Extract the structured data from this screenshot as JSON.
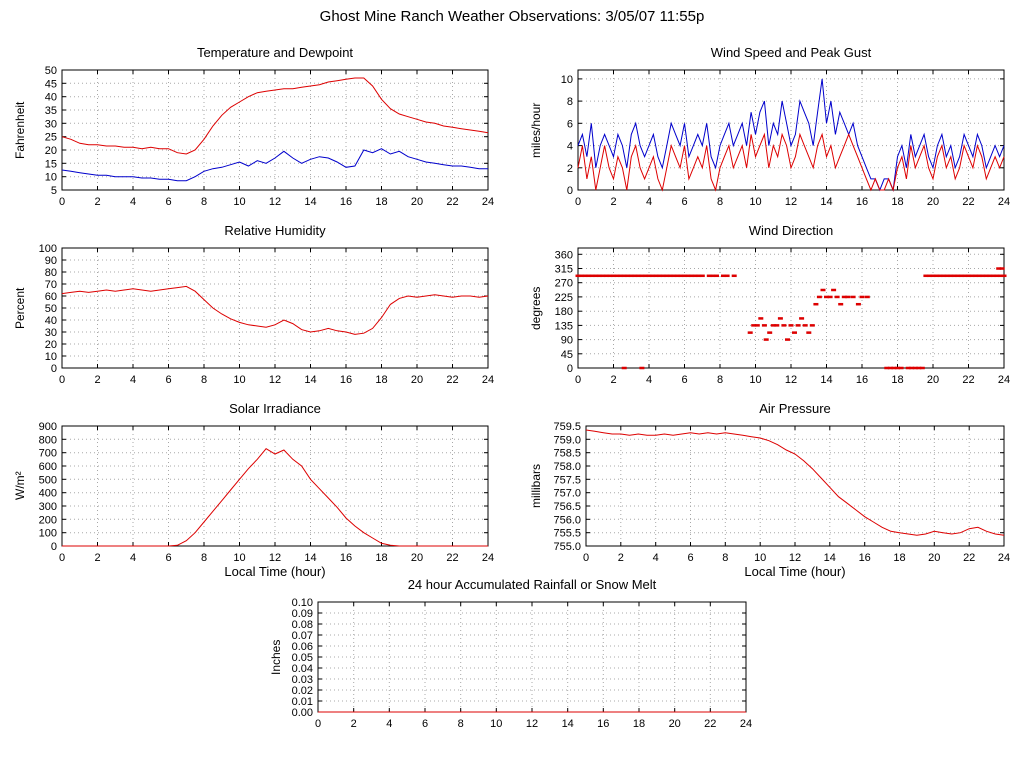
{
  "page_title": "Ghost Mine Ranch Weather Observations: 3/05/07 11:55p",
  "colors": {
    "red_series": "#dd0000",
    "blue_series": "#0000cc"
  },
  "chart_data": [
    {
      "id": "temperature_dewpoint",
      "type": "line",
      "title": "Temperature and Dewpoint",
      "ylabel": "Fahrenheit",
      "xlim": [
        0,
        24
      ],
      "xtick_step": 2,
      "ylim": [
        5,
        50
      ],
      "yticks": [
        5,
        10,
        15,
        20,
        25,
        30,
        35,
        40,
        45,
        50
      ],
      "ytick_decimals": 0,
      "x_start": 0,
      "x_step": 0.5,
      "series": [
        {
          "name": "Temperature",
          "color": "#dd0000",
          "values": [
            25,
            24,
            22.5,
            22,
            22,
            21.5,
            21.5,
            21,
            21,
            20.5,
            21,
            20.5,
            20.5,
            19,
            18.5,
            20,
            24,
            29,
            33,
            36,
            38,
            40,
            41.5,
            42,
            42.5,
            43,
            43,
            43.5,
            44,
            44.5,
            45.5,
            46,
            46.5,
            47,
            47,
            44,
            39,
            35.5,
            33.5,
            32.5,
            31.5,
            30.5,
            30,
            29,
            28.5,
            28,
            27.5,
            27,
            26.5
          ]
        },
        {
          "name": "Dewpoint",
          "color": "#0000cc",
          "values": [
            12.5,
            12,
            11.5,
            11,
            10.5,
            10.5,
            10,
            10,
            10,
            9.5,
            9.5,
            9,
            9,
            8.5,
            8.5,
            10,
            12,
            13,
            13.5,
            14.5,
            15.5,
            14,
            16,
            15,
            17,
            19.5,
            17,
            15,
            16.5,
            17.5,
            17,
            15.5,
            13.5,
            14,
            20,
            19,
            20.5,
            18.5,
            19.5,
            17.5,
            16.5,
            15.5,
            15,
            14.5,
            14,
            14,
            13.5,
            13,
            13
          ]
        }
      ]
    },
    {
      "id": "wind_speed_gust",
      "type": "line",
      "title": "Wind Speed and Peak Gust",
      "ylabel": "miles/hour",
      "xlim": [
        0,
        24
      ],
      "xtick_step": 2,
      "ylim": [
        0,
        10.8
      ],
      "yticks": [
        0,
        2,
        4,
        6,
        8,
        10
      ],
      "ytick_decimals": 0,
      "x_start": 0,
      "x_step": 0.25,
      "series": [
        {
          "name": "Peak Gust",
          "color": "#0000cc",
          "values": [
            4,
            5,
            3,
            6,
            2,
            4,
            5,
            4,
            3,
            5,
            4,
            2,
            5,
            6,
            4,
            3,
            4,
            5,
            3,
            2,
            4,
            6,
            5,
            4,
            6,
            3,
            4,
            5,
            4,
            6,
            3,
            2,
            4,
            5,
            6,
            4,
            5,
            6,
            4,
            7,
            5,
            7,
            8,
            4,
            6,
            5,
            8,
            6,
            4,
            5,
            8,
            7,
            6,
            4,
            7,
            10,
            6,
            8,
            5,
            7,
            6,
            5,
            6,
            4,
            3,
            2,
            1,
            1,
            0,
            1,
            1,
            0,
            3,
            4,
            2,
            5,
            3,
            4,
            5,
            3,
            2,
            4,
            5,
            3,
            4,
            2,
            3,
            5,
            4,
            3,
            5,
            4,
            2,
            3,
            4,
            3,
            4
          ]
        },
        {
          "name": "Wind Speed",
          "color": "#dd0000",
          "values": [
            2,
            4,
            1,
            3,
            0,
            2,
            4,
            2,
            1,
            3,
            2,
            0,
            3,
            4,
            2,
            1,
            2,
            3,
            1,
            0,
            2,
            4,
            3,
            2,
            4,
            1,
            2,
            3,
            2,
            4,
            1,
            0,
            2,
            3,
            4,
            2,
            3,
            4,
            2,
            5,
            3,
            4,
            5,
            2,
            4,
            3,
            5,
            4,
            2,
            3,
            5,
            4,
            3,
            2,
            4,
            5,
            3,
            4,
            2,
            3,
            4,
            5,
            4,
            3,
            2,
            1,
            0,
            1,
            0,
            0,
            1,
            0,
            2,
            3,
            1,
            4,
            2,
            3,
            4,
            2,
            1,
            3,
            4,
            2,
            3,
            1,
            2,
            4,
            3,
            2,
            4,
            3,
            1,
            2,
            3,
            2,
            3
          ]
        }
      ]
    },
    {
      "id": "relative_humidity",
      "type": "line",
      "title": "Relative Humidity",
      "ylabel": "Percent",
      "xlim": [
        0,
        24
      ],
      "xtick_step": 2,
      "ylim": [
        0,
        100
      ],
      "yticks": [
        0,
        10,
        20,
        30,
        40,
        50,
        60,
        70,
        80,
        90,
        100
      ],
      "ytick_decimals": 0,
      "x_start": 0,
      "x_step": 0.5,
      "series": [
        {
          "name": "Relative Humidity",
          "color": "#dd0000",
          "values": [
            62,
            63,
            64,
            63,
            64,
            65,
            64,
            65,
            66,
            65,
            64,
            65,
            66,
            67,
            68,
            64,
            57,
            50,
            45,
            41,
            38,
            36,
            35,
            34,
            36,
            40,
            37,
            32,
            30,
            31,
            33,
            31,
            30,
            28,
            29,
            33,
            42,
            53,
            58,
            60,
            59,
            60,
            61,
            60,
            59,
            60,
            60,
            59,
            60
          ]
        }
      ]
    },
    {
      "id": "wind_direction",
      "type": "scatter",
      "title": "Wind Direction",
      "ylabel": "degrees",
      "xlim": [
        0,
        24
      ],
      "xtick_step": 2,
      "ylim": [
        0,
        380
      ],
      "yticks": [
        0,
        45,
        90,
        135,
        180,
        225,
        270,
        315,
        360
      ],
      "ytick_decimals": 0,
      "series": [
        {
          "name": "Wind Direction",
          "color": "#dd0000",
          "points": [
            [
              0,
              292
            ],
            [
              0.2,
              292
            ],
            [
              0.4,
              292
            ],
            [
              0.6,
              292
            ],
            [
              0.8,
              292
            ],
            [
              1,
              292
            ],
            [
              1.2,
              292
            ],
            [
              1.4,
              292
            ],
            [
              1.6,
              292
            ],
            [
              1.8,
              292
            ],
            [
              2,
              292
            ],
            [
              2.2,
              292
            ],
            [
              2.4,
              292
            ],
            [
              2.6,
              292
            ],
            [
              2.8,
              292
            ],
            [
              3,
              292
            ],
            [
              3.2,
              292
            ],
            [
              3.4,
              292
            ],
            [
              3.6,
              292
            ],
            [
              3.8,
              292
            ],
            [
              4,
              292
            ],
            [
              4.2,
              292
            ],
            [
              4.4,
              292
            ],
            [
              4.6,
              292
            ],
            [
              4.8,
              292
            ],
            [
              5,
              292
            ],
            [
              5.2,
              292
            ],
            [
              5.4,
              292
            ],
            [
              5.6,
              292
            ],
            [
              5.8,
              292
            ],
            [
              6,
              292
            ],
            [
              6.2,
              292
            ],
            [
              6.4,
              292
            ],
            [
              6.6,
              292
            ],
            [
              6.8,
              292
            ],
            [
              7,
              292
            ],
            [
              7.4,
              292
            ],
            [
              7.6,
              292
            ],
            [
              7.8,
              292
            ],
            [
              8.2,
              292
            ],
            [
              8.4,
              292
            ],
            [
              8.8,
              292
            ],
            [
              2.6,
              0
            ],
            [
              3.6,
              0
            ],
            [
              9.7,
              112
            ],
            [
              9.9,
              135
            ],
            [
              10.1,
              135
            ],
            [
              10.3,
              157
            ],
            [
              10.5,
              135
            ],
            [
              10.6,
              90
            ],
            [
              10.8,
              112
            ],
            [
              11,
              135
            ],
            [
              11.2,
              135
            ],
            [
              11.4,
              157
            ],
            [
              11.6,
              135
            ],
            [
              11.8,
              90
            ],
            [
              12,
              135
            ],
            [
              12.2,
              112
            ],
            [
              12.4,
              135
            ],
            [
              12.6,
              157
            ],
            [
              12.8,
              135
            ],
            [
              13,
              112
            ],
            [
              13.2,
              135
            ],
            [
              13.4,
              202
            ],
            [
              13.6,
              225
            ],
            [
              13.8,
              247
            ],
            [
              14,
              225
            ],
            [
              14.2,
              225
            ],
            [
              14.4,
              247
            ],
            [
              14.6,
              225
            ],
            [
              14.8,
              202
            ],
            [
              15,
              225
            ],
            [
              15.2,
              225
            ],
            [
              15.5,
              225
            ],
            [
              15.8,
              202
            ],
            [
              16,
              225
            ],
            [
              16.3,
              225
            ],
            [
              17.4,
              0
            ],
            [
              17.6,
              0
            ],
            [
              17.8,
              0
            ],
            [
              18,
              0
            ],
            [
              18.2,
              0
            ],
            [
              18.6,
              0
            ],
            [
              18.8,
              0
            ],
            [
              19,
              0
            ],
            [
              19.2,
              0
            ],
            [
              19.4,
              0
            ],
            [
              19.6,
              292
            ],
            [
              19.8,
              292
            ],
            [
              20,
              292
            ],
            [
              20.2,
              292
            ],
            [
              20.4,
              292
            ],
            [
              20.6,
              292
            ],
            [
              20.8,
              292
            ],
            [
              21,
              292
            ],
            [
              21.2,
              292
            ],
            [
              21.4,
              292
            ],
            [
              21.6,
              292
            ],
            [
              21.8,
              292
            ],
            [
              22,
              292
            ],
            [
              22.2,
              292
            ],
            [
              22.4,
              292
            ],
            [
              22.6,
              292
            ],
            [
              22.8,
              292
            ],
            [
              23,
              292
            ],
            [
              23.2,
              292
            ],
            [
              23.4,
              292
            ],
            [
              23.6,
              292
            ],
            [
              23.8,
              292
            ],
            [
              24,
              292
            ],
            [
              23.7,
              315
            ],
            [
              23.9,
              315
            ]
          ]
        }
      ]
    },
    {
      "id": "solar_irradiance",
      "type": "line",
      "title": "Solar Irradiance",
      "ylabel": "W/m²",
      "xlabel": "Local Time (hour)",
      "xlim": [
        0,
        24
      ],
      "xtick_step": 2,
      "ylim": [
        0,
        900
      ],
      "yticks": [
        0,
        100,
        200,
        300,
        400,
        500,
        600,
        700,
        800,
        900
      ],
      "ytick_decimals": 0,
      "x_start": 0,
      "x_step": 0.5,
      "series": [
        {
          "name": "Solar Irradiance",
          "color": "#dd0000",
          "values": [
            0,
            0,
            0,
            0,
            0,
            0,
            0,
            0,
            0,
            0,
            0,
            0,
            0,
            5,
            40,
            100,
            180,
            260,
            340,
            420,
            500,
            580,
            650,
            730,
            690,
            720,
            650,
            600,
            500,
            430,
            360,
            290,
            210,
            150,
            100,
            60,
            20,
            5,
            0,
            0,
            0,
            0,
            0,
            0,
            0,
            0,
            0,
            0,
            0
          ]
        }
      ]
    },
    {
      "id": "air_pressure",
      "type": "line",
      "title": "Air Pressure",
      "ylabel": "millibars",
      "xlabel": "Local Time (hour)",
      "xlim": [
        0,
        24
      ],
      "xtick_step": 2,
      "ylim": [
        755.0,
        759.5
      ],
      "yticks": [
        755.0,
        755.5,
        756.0,
        756.5,
        757.0,
        757.5,
        758.0,
        758.5,
        759.0,
        759.5
      ],
      "ytick_decimals": 1,
      "x_start": 0,
      "x_step": 0.5,
      "series": [
        {
          "name": "Air Pressure",
          "color": "#dd0000",
          "values": [
            759.35,
            759.3,
            759.25,
            759.2,
            759.2,
            759.15,
            759.2,
            759.15,
            759.15,
            759.2,
            759.15,
            759.2,
            759.25,
            759.2,
            759.25,
            759.2,
            759.25,
            759.2,
            759.15,
            759.1,
            759.05,
            758.95,
            758.8,
            758.6,
            758.45,
            758.2,
            757.9,
            757.55,
            757.2,
            756.85,
            756.6,
            756.35,
            756.1,
            755.9,
            755.7,
            755.55,
            755.5,
            755.45,
            755.4,
            755.45,
            755.55,
            755.5,
            755.45,
            755.5,
            755.65,
            755.7,
            755.55,
            755.45,
            755.4
          ]
        }
      ]
    },
    {
      "id": "rainfall",
      "type": "line",
      "title": "24 hour Accumulated Rainfall or Snow Melt",
      "ylabel": "Inches",
      "xlim": [
        0,
        24
      ],
      "xtick_step": 2,
      "ylim": [
        0,
        0.1
      ],
      "yticks": [
        0,
        0.01,
        0.02,
        0.03,
        0.04,
        0.05,
        0.06,
        0.07,
        0.08,
        0.09,
        0.1
      ],
      "ytick_decimals": 2,
      "x_start": 0,
      "x_step": 0.5,
      "series": [
        {
          "name": "Accumulated Rainfall",
          "color": "#dd0000",
          "values": [
            0,
            0,
            0,
            0,
            0,
            0,
            0,
            0,
            0,
            0,
            0,
            0,
            0,
            0,
            0,
            0,
            0,
            0,
            0,
            0,
            0,
            0,
            0,
            0,
            0,
            0,
            0,
            0,
            0,
            0,
            0,
            0,
            0,
            0,
            0,
            0,
            0,
            0,
            0,
            0,
            0,
            0,
            0,
            0,
            0,
            0,
            0,
            0,
            0
          ]
        }
      ]
    }
  ]
}
